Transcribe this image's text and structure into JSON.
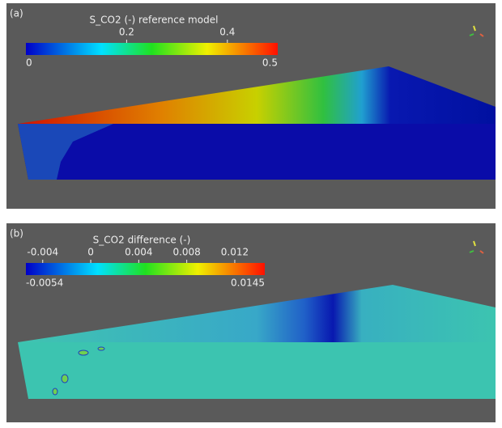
{
  "panels": [
    {
      "label": "(a)",
      "colorbar": {
        "title": "S_CO2 (-) reference model",
        "range": [
          0,
          0.5
        ],
        "ticks": [
          0.2,
          0.4
        ]
      }
    },
    {
      "label": "(b)",
      "colorbar": {
        "title": "S_CO2 difference (-)",
        "range": [
          -0.0054,
          0.0145
        ],
        "ticks": [
          -0.004,
          0,
          0.004,
          0.008,
          0.012
        ]
      }
    }
  ]
}
